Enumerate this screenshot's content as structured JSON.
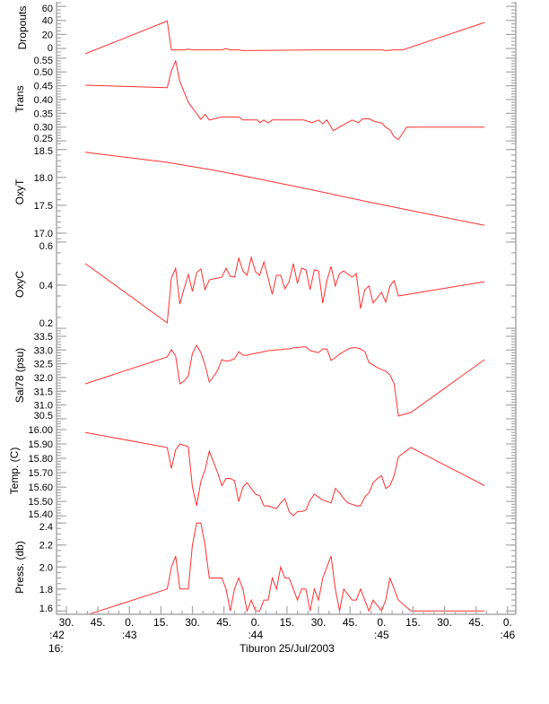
{
  "chart_data": {
    "type": "line",
    "title": "Tiburon 25/Jul/2003",
    "xlabel_hour": "16:",
    "xunit": "seconds after 16:42:00",
    "xlim": [
      25.3,
      243.9
    ],
    "xticks": [
      {
        "t": 30,
        "label": "30."
      },
      {
        "t": 45,
        "label": "45."
      },
      {
        "t": 60,
        "label": "0."
      },
      {
        "t": 75,
        "label": "15."
      },
      {
        "t": 90,
        "label": "30."
      },
      {
        "t": 105,
        "label": "45."
      },
      {
        "t": 120,
        "label": "0."
      },
      {
        "t": 135,
        "label": "15."
      },
      {
        "t": 150,
        "label": "30."
      },
      {
        "t": 165,
        "label": "45."
      },
      {
        "t": 180,
        "label": "0."
      },
      {
        "t": 195,
        "label": "15."
      },
      {
        "t": 210,
        "label": "30."
      },
      {
        "t": 225,
        "label": "45."
      },
      {
        "t": 240,
        "label": "0."
      }
    ],
    "minute_labels": [
      {
        "t": 25.5,
        "label": ":42"
      },
      {
        "t": 60,
        "label": ":43"
      },
      {
        "t": 120,
        "label": ":44"
      },
      {
        "t": 180,
        "label": ":45"
      },
      {
        "t": 240,
        "label": ":46"
      }
    ],
    "line_color": "#ff3030",
    "axis_color": "#a8a8a8",
    "panels": [
      {
        "ylabel": "Dropouts",
        "ylim": [
          -7.6,
          66.5
        ],
        "yticks": [
          "0",
          "20",
          "40",
          "60"
        ],
        "minor": 5,
        "t": [
          39,
          78,
          80,
          86,
          88,
          90,
          104,
          106,
          108,
          112,
          114,
          150,
          152,
          160,
          162,
          180,
          182,
          186,
          190,
          229
        ],
        "v": [
          -7.6,
          39,
          -2,
          -2,
          -1,
          -2,
          -2,
          0,
          -2,
          -2,
          -3,
          -2,
          -2,
          -2,
          -2,
          -2,
          -3,
          -2,
          -2,
          37
        ]
      },
      {
        "ylabel": "Trans",
        "ylim": [
          0.2374,
          0.5658
        ],
        "yticks": [
          "0.25",
          "0.30",
          "0.35",
          "0.40",
          "0.45",
          "0.50",
          "0.55"
        ],
        "minor": 0.01,
        "t": [
          39,
          78,
          80,
          82,
          84,
          88,
          94,
          96,
          98,
          104,
          112,
          114,
          121,
          122,
          124,
          126,
          128,
          143,
          147,
          150,
          152,
          154,
          157,
          166,
          169,
          171,
          174,
          177,
          180,
          182,
          184,
          186,
          188,
          192,
          229
        ],
        "v": [
          0.452,
          0.443,
          0.505,
          0.54,
          0.465,
          0.39,
          0.328,
          0.346,
          0.326,
          0.337,
          0.337,
          0.326,
          0.326,
          0.316,
          0.326,
          0.315,
          0.326,
          0.326,
          0.316,
          0.326,
          0.312,
          0.326,
          0.287,
          0.326,
          0.316,
          0.33,
          0.33,
          0.32,
          0.315,
          0.3,
          0.29,
          0.265,
          0.255,
          0.3,
          0.3
        ]
      },
      {
        "ylabel": "OxyT",
        "ylim": [
          16.887,
          18.592
        ],
        "yticks": [
          "17.0",
          "17.5",
          "18.0",
          "18.5"
        ],
        "minor": 0.1,
        "t": [
          39,
          78,
          100,
          122,
          150,
          175,
          200,
          229
        ],
        "v": [
          18.45,
          18.27,
          18.13,
          17.97,
          17.75,
          17.55,
          17.36,
          17.14
        ]
      },
      {
        "ylabel": "OxyC",
        "ylim": [
          0.196,
          0.612
        ],
        "yticks": [
          "0.2",
          "0.4",
          "0.6"
        ],
        "minor": 0.05,
        "t": [
          39,
          78,
          80,
          82,
          84,
          86,
          88,
          90,
          92,
          94,
          96,
          98,
          100,
          102,
          104,
          106,
          108,
          110,
          112,
          114,
          116,
          118,
          120,
          122,
          124,
          126,
          128,
          130,
          132,
          134,
          136,
          138,
          140,
          142,
          144,
          146,
          148,
          150,
          152,
          154,
          156,
          158,
          160,
          162,
          164,
          166,
          168,
          170,
          172,
          174,
          176,
          178,
          180,
          182,
          184,
          186,
          188,
          229
        ],
        "v": [
          0.5,
          0.225,
          0.433,
          0.479,
          0.312,
          0.383,
          0.45,
          0.371,
          0.458,
          0.475,
          0.379,
          0.425,
          0.429,
          0.433,
          0.437,
          0.479,
          0.441,
          0.437,
          0.525,
          0.466,
          0.446,
          0.529,
          0.462,
          0.446,
          0.508,
          0.433,
          0.358,
          0.446,
          0.446,
          0.383,
          0.416,
          0.5,
          0.408,
          0.479,
          0.471,
          0.379,
          0.471,
          0.466,
          0.317,
          0.421,
          0.487,
          0.396,
          0.454,
          0.466,
          0.45,
          0.437,
          0.454,
          0.292,
          0.379,
          0.396,
          0.317,
          0.342,
          0.367,
          0.321,
          0.396,
          0.421,
          0.35,
          0.416
        ]
      },
      {
        "ylabel": "Sal78 (psu)",
        "ylim": [
          30.4,
          33.76
        ],
        "yticks": [
          "30.5",
          "31.0",
          "31.5",
          "32.0",
          "32.5",
          "33.0",
          "33.5"
        ],
        "minor": 0.1,
        "t": [
          39,
          78,
          80,
          82,
          84,
          86,
          88,
          90,
          92,
          94,
          96,
          98,
          100,
          102,
          104,
          106,
          108,
          110,
          112,
          114,
          116,
          118,
          120,
          122,
          124,
          126,
          128,
          130,
          132,
          134,
          136,
          138,
          140,
          142,
          144,
          146,
          148,
          150,
          152,
          154,
          156,
          158,
          160,
          162,
          164,
          166,
          168,
          170,
          172,
          174,
          176,
          178,
          180,
          182,
          184,
          186,
          188,
          194,
          229
        ],
        "v": [
          31.77,
          32.75,
          33.01,
          32.78,
          31.77,
          31.87,
          32.06,
          32.88,
          33.17,
          32.91,
          32.46,
          31.84,
          32.03,
          32.26,
          32.65,
          32.59,
          32.62,
          32.68,
          32.94,
          32.81,
          32.81,
          32.85,
          32.88,
          32.91,
          32.94,
          32.98,
          32.98,
          33.01,
          33.01,
          33.04,
          33.04,
          33.08,
          33.08,
          33.11,
          33.11,
          32.98,
          32.94,
          32.91,
          33.04,
          33.04,
          32.62,
          32.72,
          32.85,
          32.94,
          33.04,
          33.08,
          33.08,
          33.04,
          32.94,
          32.55,
          32.46,
          32.36,
          32.29,
          32.23,
          32.1,
          31.77,
          30.6,
          30.73,
          32.65
        ]
      },
      {
        "ylabel": "Temp. (C)",
        "ylim": [
          15.37,
          16.056
        ],
        "yticks": [
          "15.40",
          "15.50",
          "15.60",
          "15.70",
          "15.80",
          "15.90",
          "16.00"
        ],
        "minor": 0.02,
        "t": [
          39,
          78,
          80,
          82,
          84,
          86,
          88,
          90,
          92,
          94,
          96,
          98,
          100,
          102,
          104,
          106,
          108,
          110,
          112,
          114,
          116,
          118,
          120,
          122,
          124,
          126,
          128,
          130,
          132,
          134,
          136,
          138,
          140,
          142,
          144,
          146,
          148,
          150,
          152,
          154,
          156,
          158,
          160,
          162,
          164,
          166,
          168,
          170,
          172,
          174,
          176,
          178,
          180,
          182,
          184,
          186,
          188,
          194,
          229
        ],
        "v": [
          15.98,
          15.875,
          15.73,
          15.86,
          15.9,
          15.89,
          15.88,
          15.6,
          15.47,
          15.64,
          15.72,
          15.85,
          15.775,
          15.7,
          15.61,
          15.66,
          15.66,
          15.645,
          15.5,
          15.6,
          15.63,
          15.59,
          15.55,
          15.54,
          15.47,
          15.47,
          15.46,
          15.45,
          15.49,
          15.52,
          15.43,
          15.4,
          15.43,
          15.43,
          15.44,
          15.51,
          15.55,
          15.53,
          15.51,
          15.5,
          15.49,
          15.59,
          15.56,
          15.52,
          15.49,
          15.48,
          15.47,
          15.47,
          15.53,
          15.56,
          15.63,
          15.66,
          15.68,
          15.59,
          15.61,
          15.68,
          15.81,
          15.875,
          15.61
        ]
      },
      {
        "ylabel": "Press. (db)",
        "ylim": [
          1.57,
          2.426
        ],
        "yticks": [
          "1.6",
          "1.8",
          "2.0",
          "2.2",
          "2.4"
        ],
        "minor": 0.05,
        "t": [
          39,
          78,
          80,
          82,
          84,
          86,
          88,
          90,
          92,
          94,
          96,
          98,
          100,
          102,
          104,
          106,
          108,
          110,
          112,
          114,
          116,
          118,
          120,
          122,
          124,
          126,
          128,
          130,
          132,
          134,
          136,
          138,
          140,
          142,
          144,
          146,
          148,
          150,
          152,
          154,
          156,
          158,
          160,
          162,
          164,
          166,
          168,
          170,
          172,
          174,
          176,
          178,
          180,
          182,
          184,
          186,
          188,
          194,
          229
        ],
        "v": [
          1.56,
          1.8,
          2.0,
          2.1,
          1.8,
          1.8,
          1.8,
          2.2,
          2.4,
          2.4,
          2.2,
          1.9,
          1.9,
          1.9,
          1.9,
          1.8,
          1.6,
          1.8,
          1.9,
          1.8,
          1.6,
          1.7,
          1.6,
          1.6,
          1.7,
          1.7,
          1.9,
          1.8,
          2.0,
          1.9,
          1.9,
          1.8,
          1.7,
          1.8,
          1.8,
          1.6,
          1.8,
          1.7,
          1.9,
          2.0,
          2.1,
          1.8,
          1.6,
          1.8,
          1.75,
          1.7,
          1.7,
          1.8,
          1.7,
          1.6,
          1.7,
          1.65,
          1.6,
          1.7,
          1.9,
          1.8,
          1.7,
          1.6,
          1.6
        ]
      }
    ]
  }
}
